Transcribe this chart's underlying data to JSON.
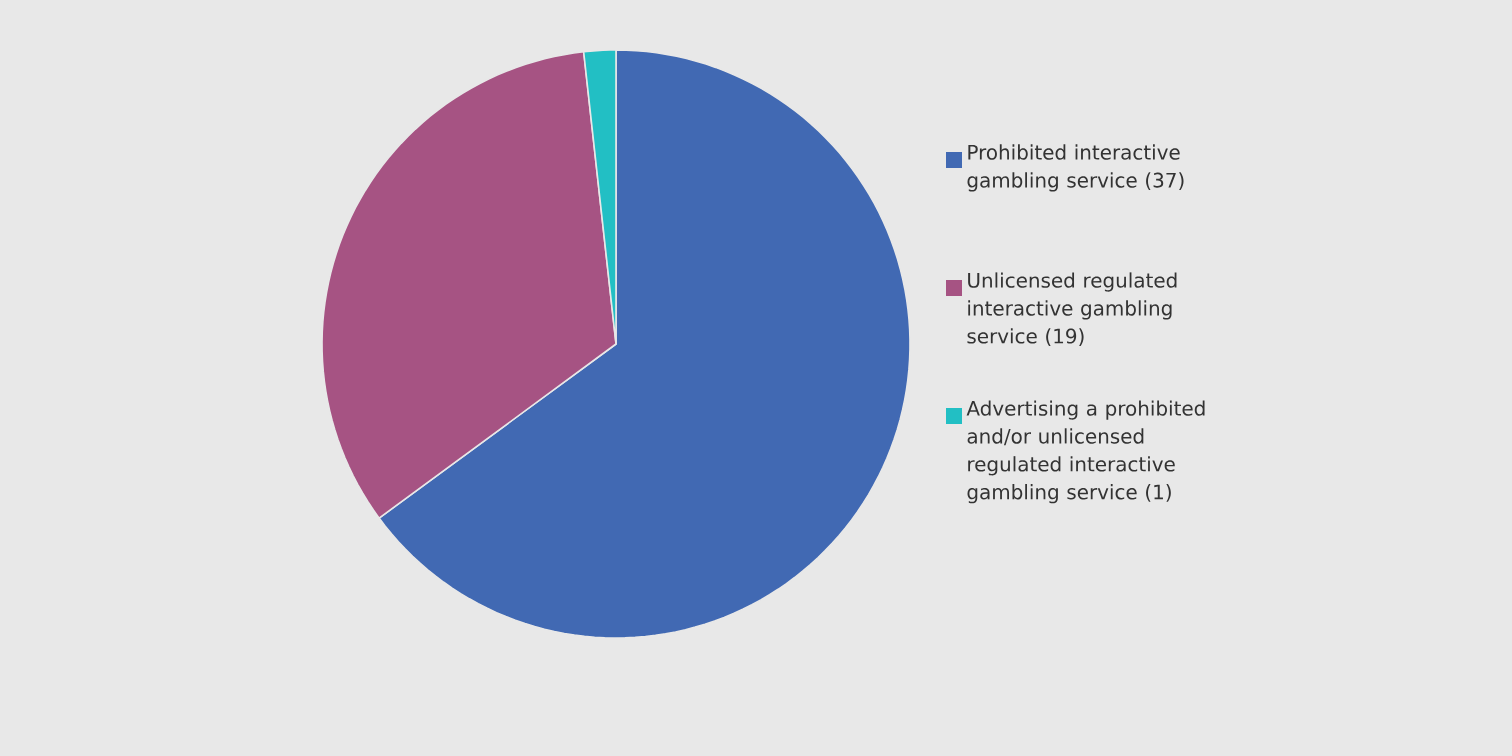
{
  "chart_data": {
    "type": "pie",
    "categories": [
      "Prohibited interactive gambling service (37)",
      "Unlicensed regulated interactive gambling service (19)",
      "Advertising a prohibited and/or unlicensed regulated interactive gambling service (1)"
    ],
    "values": [
      37,
      19,
      1
    ],
    "colors": [
      "#4169b3",
      "#a65383",
      "#22bfc4"
    ],
    "legend": "right"
  }
}
